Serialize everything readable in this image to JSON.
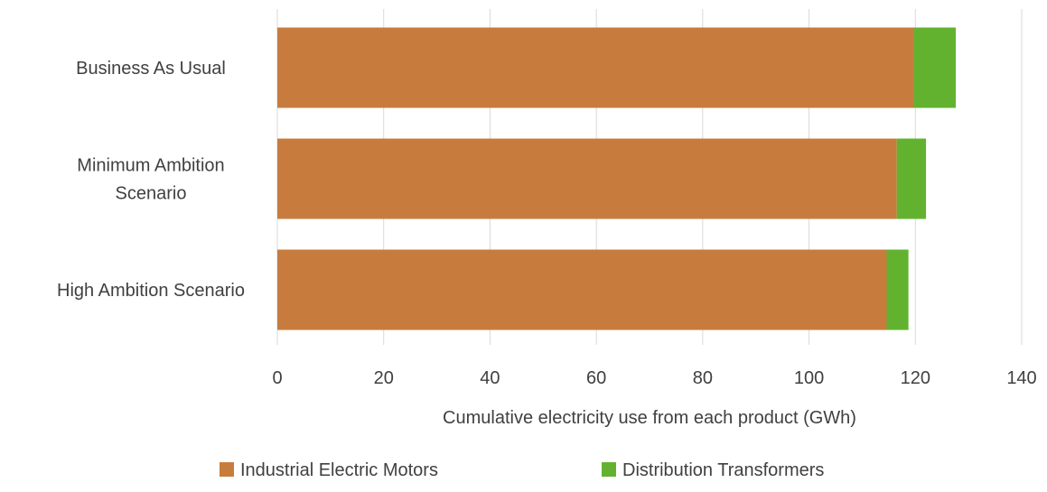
{
  "chart_data": {
    "type": "bar",
    "orientation": "horizontal",
    "stacked": true,
    "title": "",
    "xlabel": "Cumulative electricity use from each product (GWh)",
    "ylabel": "",
    "xlim": [
      0,
      140
    ],
    "x_ticks": [
      0,
      20,
      40,
      60,
      80,
      100,
      120,
      140
    ],
    "grid": "vertical",
    "legend_position": "bottom",
    "categories": [
      [
        "Business As Usual"
      ],
      [
        "Minimum Ambition",
        "Scenario"
      ],
      [
        "High Ambition Scenario"
      ]
    ],
    "series": [
      {
        "name": "Industrial Electric Motors",
        "color": "#C77C3E",
        "values": [
          119.7,
          116.5,
          114.6
        ]
      },
      {
        "name": "Distribution Transformers",
        "color": "#62B22F",
        "values": [
          7.9,
          5.5,
          4.1
        ]
      }
    ],
    "colors": {
      "grid": "#D9D9D9",
      "text": "#404040",
      "axis": "#D9D9D9"
    }
  }
}
